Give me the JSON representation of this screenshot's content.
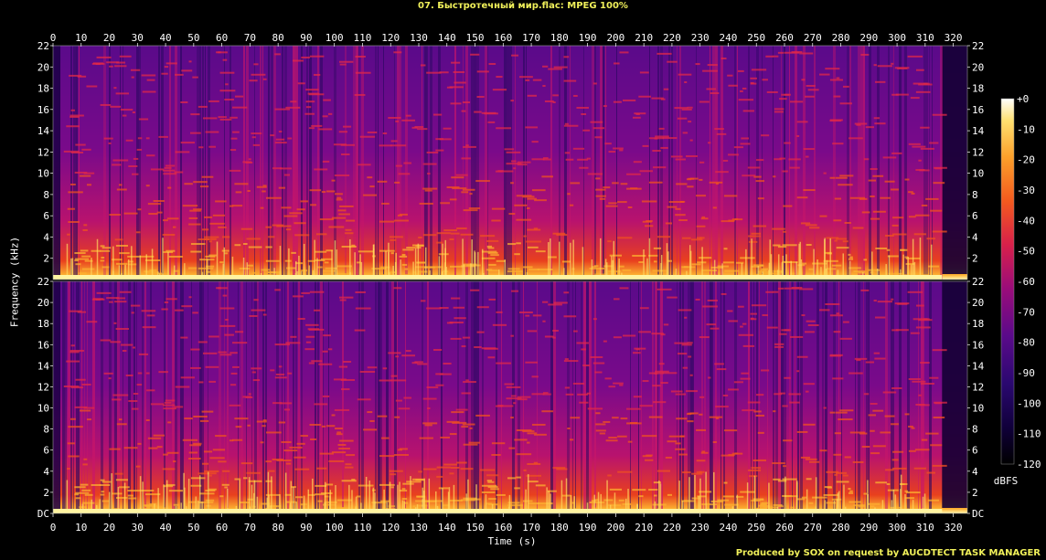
{
  "title": "07. Быстротечный мир.flac: MPEG 100%",
  "footer": "Produced by SOX on request by AUCDTECT TASK MANAGER",
  "chart_data": {
    "type": "heatmap",
    "title": "07. Быстротечный мир.flac: MPEG 100%",
    "xlabel": "Time (s)",
    "ylabel": "Frequency (kHz)",
    "xlim": [
      0,
      325
    ],
    "x_ticks": [
      0,
      10,
      20,
      30,
      40,
      50,
      60,
      70,
      80,
      90,
      100,
      110,
      120,
      130,
      140,
      150,
      160,
      170,
      180,
      190,
      200,
      210,
      220,
      230,
      240,
      250,
      260,
      270,
      280,
      290,
      300,
      310,
      320
    ],
    "channels": 2,
    "y_ticks": [
      {
        "value": 0,
        "label": "DC"
      },
      {
        "value": 2,
        "label": "2"
      },
      {
        "value": 4,
        "label": "4"
      },
      {
        "value": 6,
        "label": "6"
      },
      {
        "value": 8,
        "label": "8"
      },
      {
        "value": 10,
        "label": "10"
      },
      {
        "value": 12,
        "label": "12"
      },
      {
        "value": 14,
        "label": "14"
      },
      {
        "value": 16,
        "label": "16"
      },
      {
        "value": 18,
        "label": "18"
      },
      {
        "value": 20,
        "label": "20"
      },
      {
        "value": 22,
        "label": "22"
      }
    ],
    "colorbar": {
      "label": "dBFS",
      "range": [
        -120,
        0
      ],
      "ticks": [
        "+0",
        "-10",
        "-20",
        "-30",
        "-40",
        "-50",
        "-60",
        "-70",
        "-80",
        "-90",
        "-100",
        "-110",
        "-120"
      ]
    },
    "colormap_stops": [
      "#000000",
      "#1a0044",
      "#3a0a7a",
      "#7a0a8a",
      "#b8126e",
      "#e83a2a",
      "#f8781a",
      "#fcc030",
      "#fff09a",
      "#ffffff"
    ]
  }
}
